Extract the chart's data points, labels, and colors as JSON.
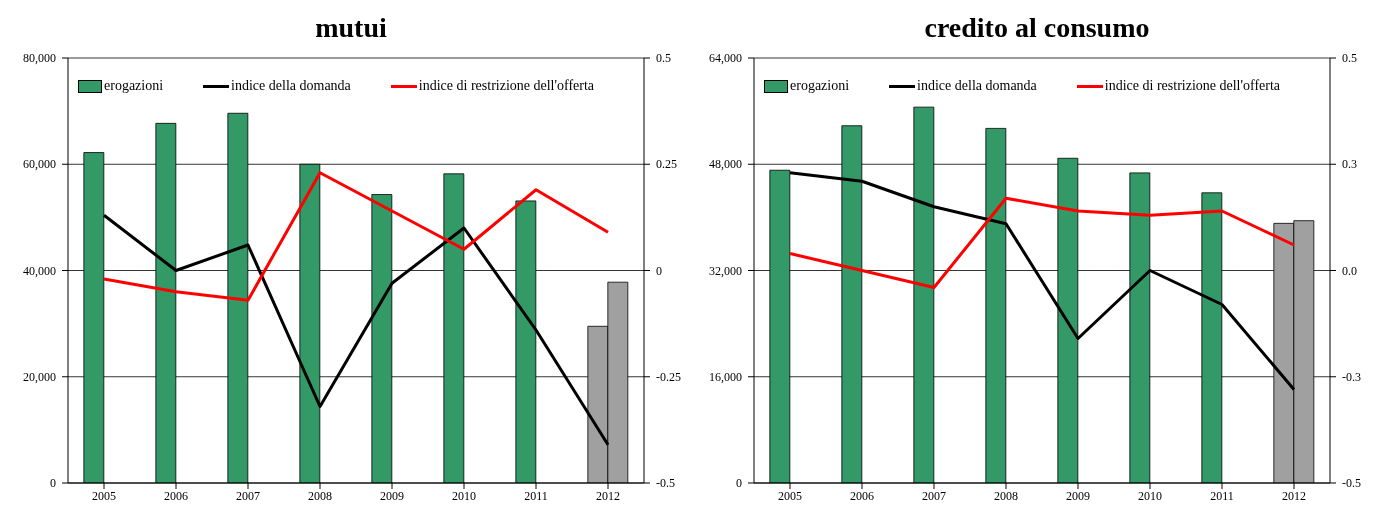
{
  "chart_data": [
    {
      "type": "bar",
      "title": "mutui",
      "categories": [
        "2005",
        "2006",
        "2007",
        "2008",
        "2009",
        "2010",
        "2011",
        "2012"
      ],
      "series": [
        {
          "name": "erogazioni",
          "color": "#339966",
          "colors": [
            "#339966",
            "#339966",
            "#339966",
            "#339966",
            "#339966",
            "#339966",
            "#339966",
            "#a0a0a0"
          ],
          "values": [
            62200,
            67700,
            69600,
            60000,
            54300,
            58200,
            53100,
            29500
          ]
        },
        {
          "color": "#a0a0a0",
          "values": [
            null,
            null,
            null,
            null,
            null,
            null,
            null,
            37800
          ]
        },
        {
          "name": "indice della domanda",
          "type": "line",
          "axis": "y2",
          "color": "#000000",
          "values": [
            0.13,
            0,
            0.06,
            -0.32,
            -0.03,
            0.1,
            -0.14,
            -0.41
          ]
        },
        {
          "name": "indice di restrizione dell'offerta",
          "type": "line",
          "axis": "y2",
          "color": "#ff0000",
          "values": [
            -0.02,
            -0.05,
            -0.07,
            0.23,
            0.14,
            0.05,
            0.19,
            0.09
          ]
        }
      ],
      "ylim": [
        0,
        80000
      ],
      "yticks": [
        {
          "value": 0,
          "label": "0"
        },
        {
          "value": 20000,
          "label": "20,000"
        },
        {
          "value": 40000,
          "label": "40,000"
        },
        {
          "value": 60000,
          "label": "60,000"
        },
        {
          "value": 80000,
          "label": "80,000"
        }
      ],
      "y2lim": [
        -0.5,
        0.5
      ],
      "y2ticks": [
        -0.5,
        -0.25,
        0,
        0.25,
        0.5
      ],
      "grid": "y",
      "legend": "top",
      "marker": "none",
      "line_style": "solid"
    },
    {
      "type": "bar",
      "title": "credito al consumo",
      "categories": [
        "2005",
        "2006",
        "2007",
        "2008",
        "2009",
        "2010",
        "2011",
        "2012"
      ],
      "series": [
        {
          "name": "erogazioni",
          "color": "#339966",
          "colors": [
            "#339966",
            "#339966",
            "#339966",
            "#339966",
            "#339966",
            "#339966",
            "#339966",
            "#a0a0a0"
          ],
          "values": [
            47100,
            53800,
            56600,
            53400,
            48900,
            46700,
            43700,
            39100
          ]
        },
        {
          "color": "#a0a0a0",
          "values": [
            null,
            null,
            null,
            null,
            null,
            null,
            null,
            39500
          ]
        },
        {
          "name": "indice della domanda",
          "type": "line",
          "axis": "y2",
          "color": "#000000",
          "values": [
            0.23,
            0.21,
            0.15,
            0.11,
            -0.16,
            0,
            -0.08,
            -0.28
          ]
        },
        {
          "name": "indice di restrizione dell'offerta",
          "type": "line",
          "axis": "y2",
          "color": "#ff0000",
          "values": [
            0.04,
            0,
            -0.04,
            0.17,
            0.14,
            0.13,
            0.14,
            0.06
          ]
        }
      ],
      "ylim": [
        0,
        64000
      ],
      "yticks": [
        {
          "value": 0,
          "label": "0"
        },
        {
          "value": 16000,
          "label": "16,000"
        },
        {
          "value": 32000,
          "label": "32,000"
        },
        {
          "value": 48000,
          "label": "48,000"
        },
        {
          "value": 64000,
          "label": "64,000"
        }
      ],
      "y2lim": [
        -0.5,
        0.5
      ],
      "y2ticks": [
        {
          "value": -0.5,
          "label": "-0.5"
        },
        {
          "value": -0.25,
          "label": "-0.3"
        },
        {
          "value": 0,
          "label": "0.0"
        },
        {
          "value": 0.25,
          "label": "0.3"
        },
        {
          "value": 0.5,
          "label": "0.5"
        }
      ],
      "grid": "y",
      "legend": "top",
      "marker": "none",
      "line_style": "solid"
    }
  ]
}
